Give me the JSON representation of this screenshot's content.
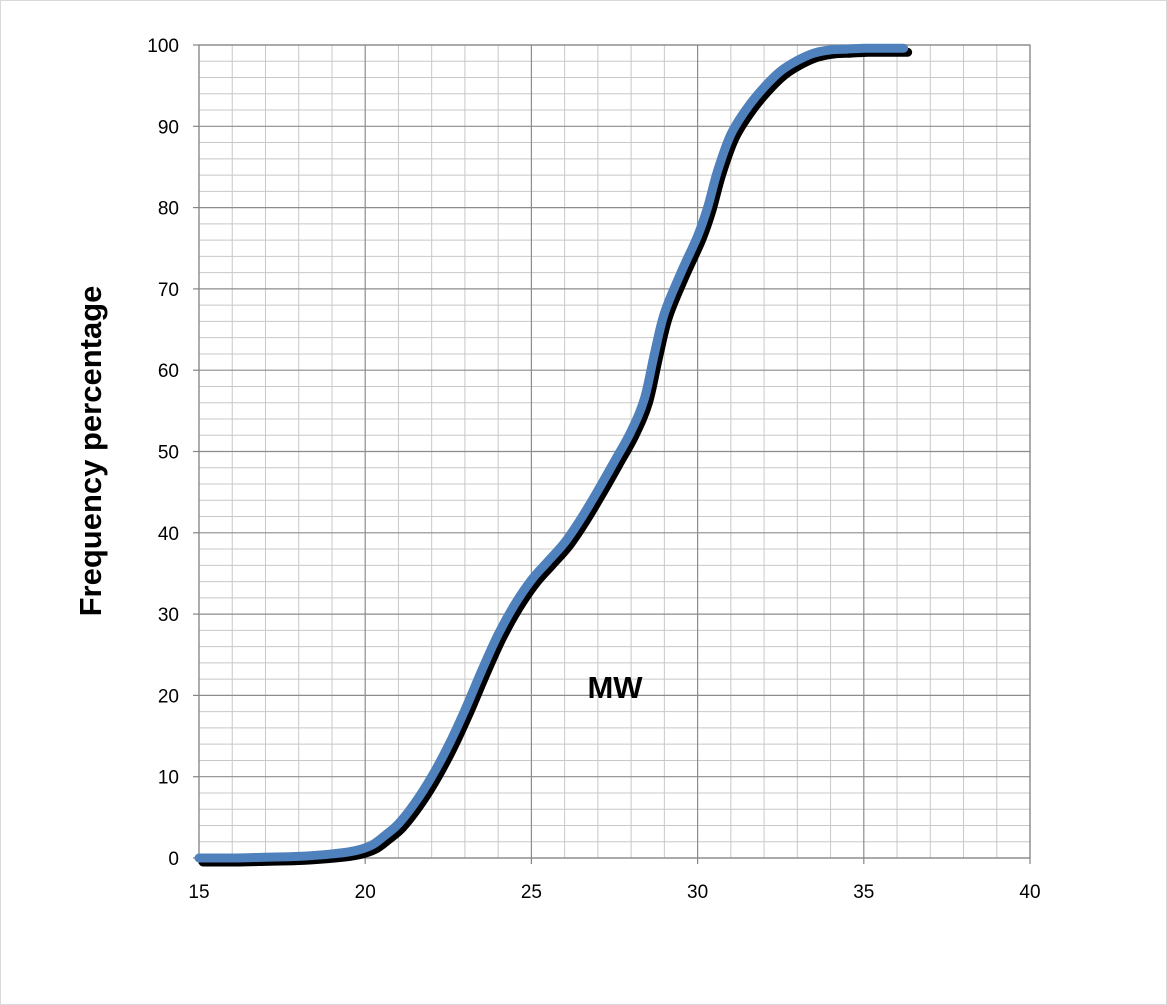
{
  "chart_data": {
    "type": "line",
    "title": "",
    "xlabel": "MW",
    "ylabel": "Frequency percentage",
    "xlim": [
      15,
      40
    ],
    "ylim": [
      0,
      100
    ],
    "x_ticks": [
      15,
      20,
      25,
      30,
      35,
      40
    ],
    "y_ticks": [
      0,
      10,
      20,
      30,
      40,
      50,
      60,
      70,
      80,
      90,
      100
    ],
    "x_tick_labels": [
      "15",
      "20",
      "25",
      "30",
      "35",
      "40"
    ],
    "y_tick_labels": [
      "0",
      "10",
      "20",
      "30",
      "40",
      "50",
      "60",
      "70",
      "80",
      "90",
      "100"
    ],
    "grid": true,
    "minor_grid": true,
    "legend": "none",
    "series": [
      {
        "color": "#4f81bd",
        "shadow_color": "#000000",
        "x": [
          15,
          16,
          17,
          18,
          19,
          19.7,
          20.2,
          20.6,
          21,
          21.5,
          22,
          22.5,
          23,
          23.5,
          24,
          24.5,
          25,
          25.5,
          26,
          26.5,
          27,
          27.5,
          28,
          28.4,
          28.7,
          29,
          29.5,
          30,
          30.3,
          30.6,
          31,
          31.5,
          32,
          32.5,
          33,
          33.5,
          34,
          34.5,
          35,
          35.5,
          36.2
        ],
        "y": [
          0,
          0,
          0.1,
          0.2,
          0.5,
          0.9,
          1.6,
          2.8,
          4.2,
          6.8,
          10,
          13.8,
          18.2,
          23,
          27.5,
          31.2,
          34.2,
          36.5,
          38.8,
          41.8,
          45.2,
          48.8,
          52.5,
          56.5,
          62,
          67,
          72,
          76.5,
          80,
          84.5,
          89,
          92.3,
          94.8,
          96.8,
          98.1,
          99,
          99.4,
          99.5,
          99.6,
          99.6,
          99.6
        ]
      }
    ]
  }
}
